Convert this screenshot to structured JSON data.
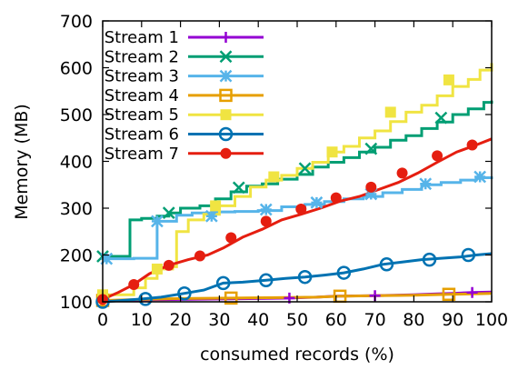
{
  "chart_data": {
    "type": "line",
    "title": "",
    "xlabel": "consumed records (%)",
    "ylabel": "Memory (MB)",
    "xlim": [
      0,
      100
    ],
    "ylim": [
      100,
      700
    ],
    "xticks": [
      0,
      10,
      20,
      30,
      40,
      50,
      60,
      70,
      80,
      90,
      100
    ],
    "yticks": [
      100,
      200,
      300,
      400,
      500,
      600,
      700
    ],
    "grid": false,
    "legend_position": "top-left",
    "series": [
      {
        "name": "Stream 1",
        "color": "#9400d3",
        "marker": "plus",
        "step": false,
        "x": [
          0,
          5,
          10,
          20,
          30,
          40,
          48,
          55,
          60,
          70,
          75,
          80,
          86,
          90,
          95,
          100
        ],
        "y": [
          102,
          103,
          104,
          105,
          106,
          107,
          108,
          110,
          112,
          113,
          114,
          115,
          117,
          118,
          120,
          121
        ],
        "markers_x": [
          0,
          48,
          70,
          95
        ],
        "markers_y": [
          102,
          108,
          113,
          120
        ]
      },
      {
        "name": "Stream 2",
        "color": "#009e73",
        "marker": "cross",
        "step": true,
        "x": [
          0,
          2,
          7,
          10,
          14,
          17,
          20,
          25,
          29,
          33,
          37,
          41,
          45,
          50,
          54,
          58,
          62,
          66,
          70,
          74,
          78,
          82,
          86,
          90,
          94,
          98,
          100
        ],
        "y": [
          197,
          197,
          275,
          278,
          283,
          290,
          300,
          305,
          320,
          335,
          347,
          352,
          362,
          372,
          388,
          398,
          408,
          420,
          430,
          445,
          455,
          470,
          484,
          500,
          512,
          526,
          530
        ],
        "markers_x": [
          0,
          17,
          35,
          52,
          69,
          87
        ],
        "markers_y": [
          197,
          290,
          344,
          385,
          427,
          493
        ]
      },
      {
        "name": "Stream 3",
        "color": "#56b4e9",
        "marker": "star",
        "step": true,
        "x": [
          0,
          4,
          8,
          12,
          14,
          16,
          19,
          23,
          28,
          34,
          40,
          46,
          52,
          57,
          62,
          67,
          72,
          77,
          82,
          87,
          92,
          96,
          100
        ],
        "y": [
          192,
          192,
          193,
          193,
          272,
          272,
          285,
          290,
          292,
          293,
          295,
          303,
          308,
          314,
          320,
          325,
          333,
          340,
          350,
          355,
          360,
          365,
          368
        ],
        "markers_x": [
          1,
          14,
          28,
          42,
          55,
          69,
          83,
          97
        ],
        "markers_y": [
          192,
          272,
          283,
          297,
          312,
          330,
          352,
          367
        ]
      },
      {
        "name": "Stream 4",
        "color": "#e69f00",
        "marker": "square",
        "step": false,
        "x": [
          0,
          10,
          20,
          33,
          45,
          55,
          61,
          70,
          80,
          89,
          95,
          100
        ],
        "y": [
          103,
          105,
          107,
          108,
          109,
          110,
          112,
          113,
          114,
          116,
          117,
          118
        ],
        "markers_x": [
          0,
          33,
          61,
          89
        ],
        "markers_y": [
          103,
          108,
          112,
          116
        ]
      },
      {
        "name": "Stream 5",
        "color": "#f0e442",
        "marker": "fsquare",
        "step": true,
        "x": [
          0,
          5,
          8,
          11,
          14,
          18,
          19,
          22,
          26,
          30,
          34,
          38,
          42,
          46,
          50,
          54,
          58,
          62,
          66,
          70,
          74,
          78,
          82,
          86,
          90,
          94,
          97,
          100
        ],
        "y": [
          115,
          115,
          130,
          150,
          170,
          175,
          250,
          275,
          287,
          305,
          325,
          345,
          360,
          370,
          385,
          398,
          420,
          432,
          450,
          465,
          485,
          505,
          520,
          540,
          560,
          575,
          595,
          610
        ],
        "markers_x": [
          0,
          14,
          29,
          44,
          59,
          74,
          89
        ],
        "markers_y": [
          115,
          170,
          305,
          367,
          420,
          505,
          574
        ]
      },
      {
        "name": "Stream 6",
        "color": "#0072b2",
        "marker": "circle",
        "step": false,
        "x": [
          0,
          5,
          10,
          15,
          21,
          26,
          31,
          36,
          42,
          47,
          52,
          57,
          62,
          67,
          72,
          77,
          82,
          87,
          92,
          96,
          100
        ],
        "y": [
          100,
          103,
          106,
          110,
          118,
          125,
          140,
          142,
          146,
          150,
          153,
          157,
          162,
          170,
          180,
          185,
          190,
          193,
          196,
          200,
          203
        ],
        "markers_x": [
          0,
          11,
          21,
          31,
          42,
          52,
          62,
          73,
          84,
          94
        ],
        "markers_y": [
          100,
          106,
          118,
          140,
          146,
          153,
          162,
          180,
          190,
          200
        ]
      },
      {
        "name": "Stream 7",
        "color": "#e51e10",
        "marker": "fcircle",
        "step": false,
        "x": [
          0,
          4,
          8,
          12,
          17,
          22,
          27,
          31,
          36,
          41,
          46,
          51,
          56,
          61,
          66,
          71,
          76,
          81,
          86,
          91,
          96,
          100
        ],
        "y": [
          105,
          120,
          137,
          160,
          178,
          190,
          200,
          215,
          238,
          255,
          275,
          287,
          300,
          315,
          325,
          340,
          355,
          375,
          398,
          420,
          435,
          448
        ],
        "markers_x": [
          0,
          8,
          17,
          25,
          33,
          42,
          51,
          60,
          69,
          77,
          86,
          95
        ],
        "markers_y": [
          105,
          137,
          178,
          198,
          237,
          272,
          298,
          322,
          345,
          375,
          412,
          435
        ]
      }
    ]
  }
}
